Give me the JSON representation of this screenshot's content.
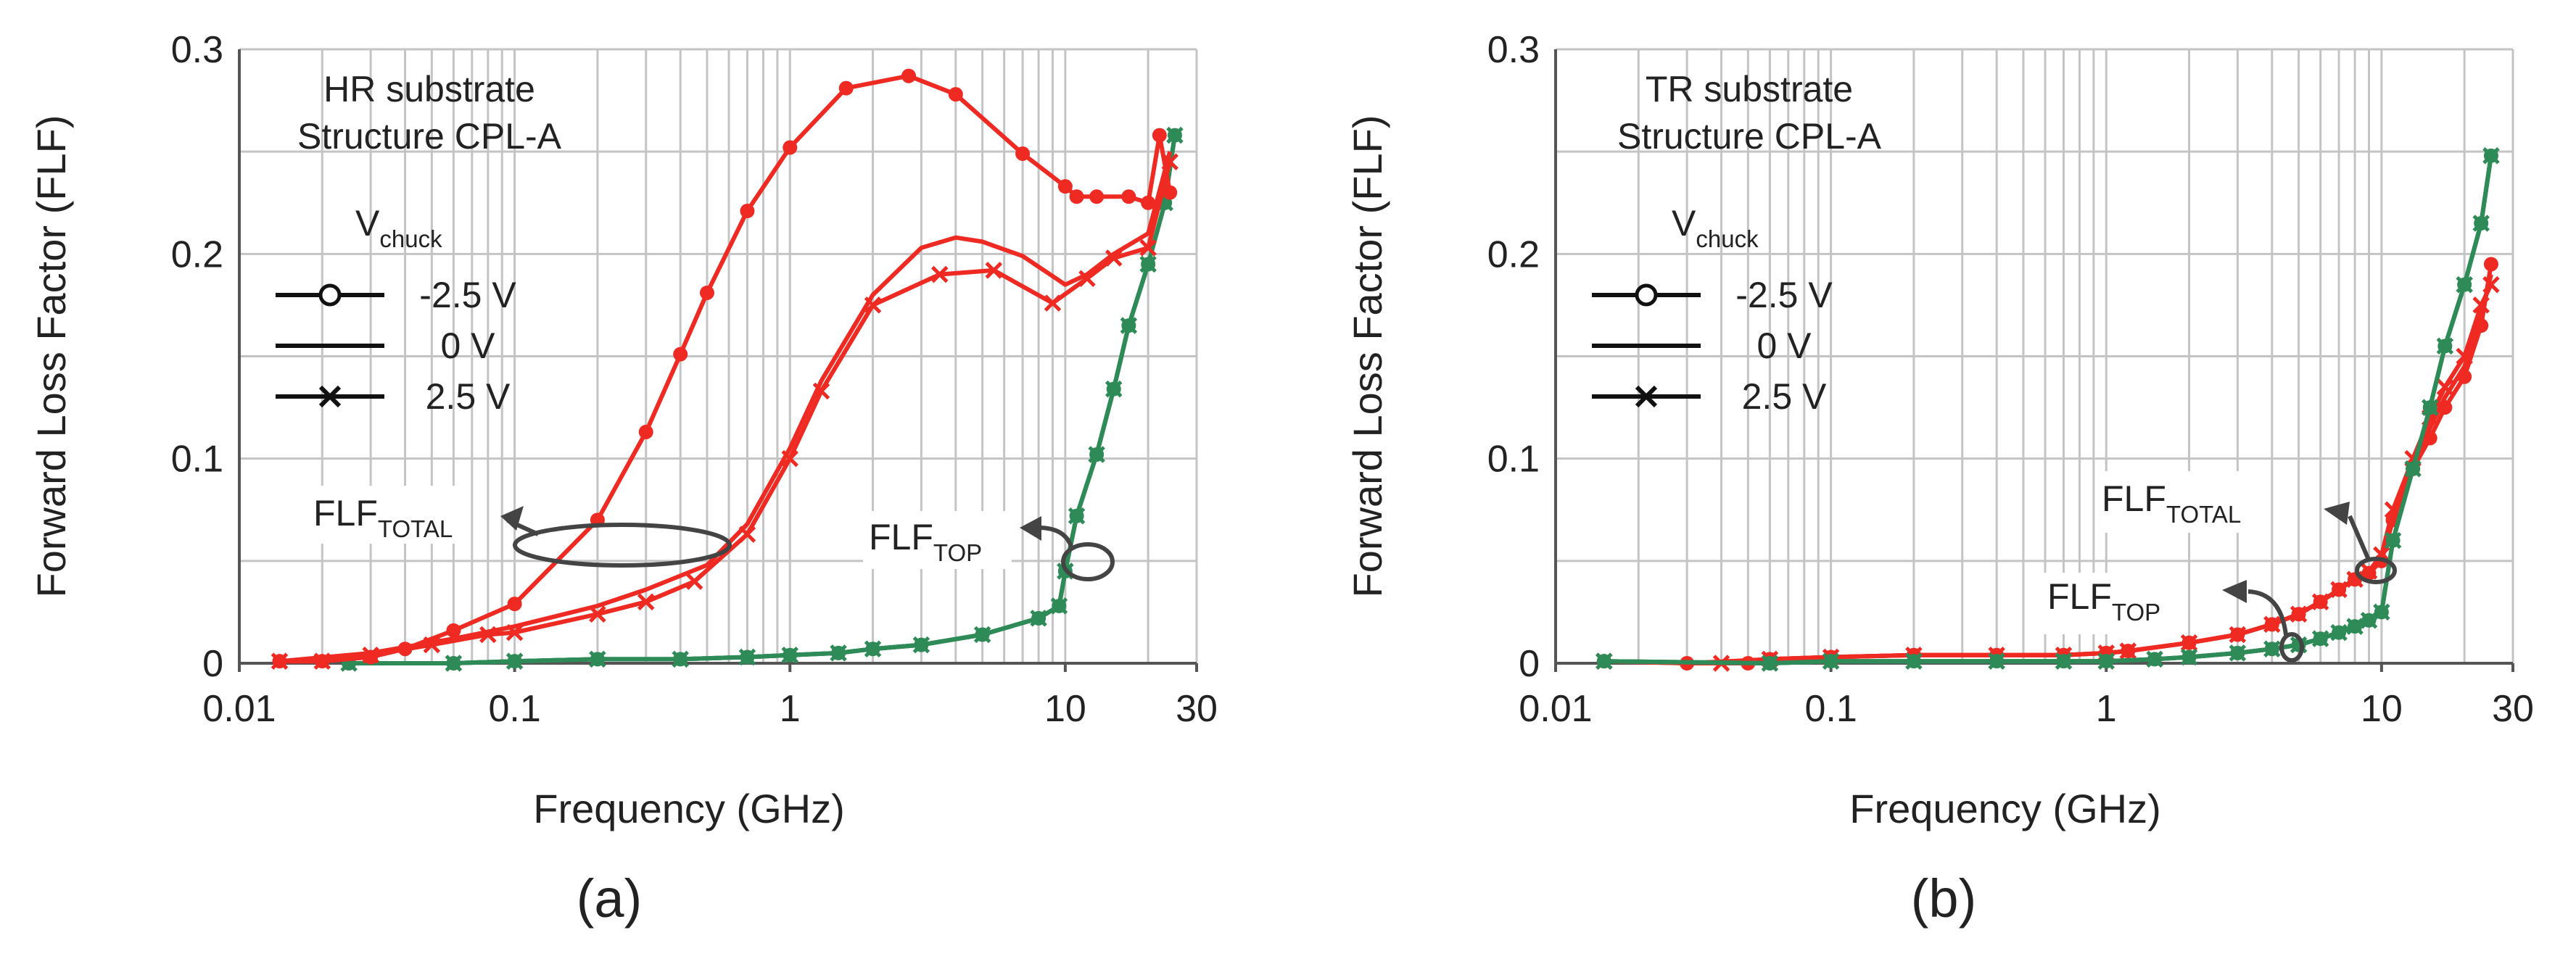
{
  "colors": {
    "red": "#ee2a22",
    "green": "#2e8b57",
    "grid": "#c4c4c4",
    "axis": "#555555",
    "marker_fill": "#ffffff"
  },
  "legend": {
    "title_main": "V",
    "title_sub": "chuck",
    "items": [
      {
        "marker": "circle",
        "label": "-2.5 V"
      },
      {
        "marker": "none",
        "label": "0 V"
      },
      {
        "marker": "cross",
        "label": "2.5 V"
      }
    ]
  },
  "chart_data": [
    {
      "panel": "a",
      "caption": "(a)",
      "type": "line",
      "xscale": "log",
      "xlim": [
        0.01,
        30
      ],
      "ylim": [
        0,
        0.3
      ],
      "xticks": [
        0.01,
        0.1,
        1,
        10,
        30
      ],
      "xtick_labels": [
        "0.01",
        "0.1",
        "1",
        "10",
        "30"
      ],
      "yticks": [
        0,
        0.1,
        0.2,
        0.3
      ],
      "ytick_labels": [
        "0",
        "0.1",
        "0.2",
        "0.3"
      ],
      "xlabel": "Frequency (GHz)",
      "ylabel": "Forward Loss Factor (FLF)",
      "annotation": {
        "line1": "HR substrate",
        "line2": "Structure CPL-A"
      },
      "labels": {
        "total_main": "FLF",
        "total_sub": "TOTAL",
        "top_main": "FLF",
        "top_sub": "TOP"
      },
      "series": [
        {
          "name": "FLF_TOTAL -2.5 V",
          "group": "total",
          "marker": "circle",
          "x": [
            0.014,
            0.02,
            0.03,
            0.04,
            0.06,
            0.1,
            0.2,
            0.3,
            0.4,
            0.5,
            0.7,
            1.0,
            1.6,
            2.7,
            4.0,
            7.0,
            10.0,
            11.0,
            13.0,
            17.0,
            20.0,
            22.0,
            24.0
          ],
          "y": [
            0.001,
            0.001,
            0.003,
            0.007,
            0.016,
            0.029,
            0.07,
            0.113,
            0.151,
            0.181,
            0.221,
            0.252,
            0.281,
            0.287,
            0.278,
            0.249,
            0.233,
            0.228,
            0.228,
            0.228,
            0.225,
            0.258,
            0.23
          ]
        },
        {
          "name": "FLF_TOTAL 0 V",
          "group": "total",
          "marker": "none",
          "x": [
            0.014,
            0.03,
            0.06,
            0.1,
            0.2,
            0.3,
            0.5,
            0.7,
            1.0,
            1.3,
            2.0,
            3.0,
            4.0,
            5.0,
            7.0,
            10.0,
            12.0,
            15.0,
            20.0,
            24.0
          ],
          "y": [
            0.001,
            0.005,
            0.012,
            0.018,
            0.028,
            0.036,
            0.048,
            0.068,
            0.105,
            0.138,
            0.18,
            0.203,
            0.208,
            0.206,
            0.199,
            0.185,
            0.19,
            0.2,
            0.21,
            0.25
          ]
        },
        {
          "name": "FLF_TOTAL 2.5 V",
          "group": "total",
          "marker": "cross",
          "x": [
            0.014,
            0.02,
            0.03,
            0.05,
            0.08,
            0.1,
            0.2,
            0.3,
            0.45,
            0.7,
            1.0,
            1.3,
            2.0,
            3.5,
            5.5,
            9.0,
            12.0,
            15.0,
            20.0,
            24.0
          ],
          "y": [
            0.001,
            0.001,
            0.004,
            0.009,
            0.014,
            0.015,
            0.024,
            0.03,
            0.04,
            0.063,
            0.1,
            0.133,
            0.175,
            0.19,
            0.192,
            0.176,
            0.188,
            0.198,
            0.203,
            0.245
          ]
        },
        {
          "name": "FLF_TOP -2.5 V",
          "group": "top",
          "marker": "circle",
          "x": [
            0.025,
            0.06,
            0.1,
            0.2,
            0.4,
            0.7,
            1.0,
            1.5,
            2.0,
            3.0,
            5.0,
            8.0,
            9.5,
            10.0,
            11.0,
            13.0,
            15.0,
            17.0,
            20.0,
            23.0,
            25.0
          ],
          "y": [
            0.0,
            0.0,
            0.001,
            0.002,
            0.002,
            0.003,
            0.004,
            0.005,
            0.007,
            0.009,
            0.014,
            0.022,
            0.028,
            0.045,
            0.072,
            0.102,
            0.134,
            0.165,
            0.195,
            0.225,
            0.258
          ]
        },
        {
          "name": "FLF_TOP 0 V",
          "group": "top",
          "marker": "none",
          "x": [
            0.025,
            0.06,
            0.1,
            0.2,
            0.4,
            0.7,
            1.0,
            1.5,
            2.0,
            3.0,
            5.0,
            8.0,
            9.5,
            10.0,
            11.0,
            13.0,
            15.0,
            17.0,
            20.0,
            23.0,
            25.0
          ],
          "y": [
            0.0,
            0.0,
            0.001,
            0.002,
            0.002,
            0.003,
            0.004,
            0.005,
            0.007,
            0.009,
            0.014,
            0.022,
            0.028,
            0.045,
            0.072,
            0.102,
            0.134,
            0.165,
            0.195,
            0.225,
            0.258
          ]
        },
        {
          "name": "FLF_TOP 2.5 V",
          "group": "top",
          "marker": "cross",
          "x": [
            0.025,
            0.06,
            0.1,
            0.2,
            0.4,
            0.7,
            1.0,
            1.5,
            2.0,
            3.0,
            5.0,
            8.0,
            9.5,
            10.0,
            11.0,
            13.0,
            15.0,
            17.0,
            20.0,
            23.0,
            25.0
          ],
          "y": [
            0.0,
            0.0,
            0.001,
            0.002,
            0.002,
            0.003,
            0.004,
            0.005,
            0.007,
            0.009,
            0.014,
            0.022,
            0.028,
            0.045,
            0.072,
            0.102,
            0.134,
            0.165,
            0.195,
            0.225,
            0.258
          ]
        }
      ]
    },
    {
      "panel": "b",
      "caption": "(b)",
      "type": "line",
      "xscale": "log",
      "xlim": [
        0.01,
        30
      ],
      "ylim": [
        0,
        0.3
      ],
      "xticks": [
        0.01,
        0.1,
        1,
        10,
        30
      ],
      "xtick_labels": [
        "0.01",
        "0.1",
        "1",
        "10",
        "30"
      ],
      "yticks": [
        0,
        0.1,
        0.2,
        0.3
      ],
      "ytick_labels": [
        "0",
        "0.1",
        "0.2",
        "0.3"
      ],
      "xlabel": "Frequency (GHz)",
      "ylabel": "Forward Loss Factor (FLF)",
      "annotation": {
        "line1": "TR substrate",
        "line2": "Structure CPL-A"
      },
      "labels": {
        "total_main": "FLF",
        "total_sub": "TOTAL",
        "top_main": "FLF",
        "top_sub": "TOP"
      },
      "series": [
        {
          "name": "FLF_TOTAL -2.5 V",
          "group": "total",
          "marker": "circle",
          "x": [
            0.015,
            0.03,
            0.05,
            0.06,
            0.1,
            0.2,
            0.4,
            0.7,
            1.0,
            1.2,
            2.0,
            3.0,
            4.0,
            5.0,
            6.0,
            7.0,
            8.0,
            9.0,
            10.0,
            11.0,
            13.0,
            15.0,
            17.0,
            20.0,
            23.0,
            25.0
          ],
          "y": [
            0.001,
            0.0,
            0.0,
            0.002,
            0.003,
            0.004,
            0.004,
            0.004,
            0.005,
            0.006,
            0.01,
            0.014,
            0.019,
            0.024,
            0.03,
            0.036,
            0.041,
            0.044,
            0.05,
            0.07,
            0.095,
            0.11,
            0.125,
            0.14,
            0.165,
            0.195
          ]
        },
        {
          "name": "FLF_TOTAL 0 V",
          "group": "total",
          "marker": "none",
          "x": [
            0.015,
            0.03,
            0.06,
            0.1,
            0.2,
            0.4,
            0.7,
            1.0,
            1.2,
            2.0,
            3.0,
            4.0,
            5.0,
            6.0,
            7.0,
            8.0,
            9.0,
            10.0,
            11.0,
            13.0,
            15.0,
            17.0,
            20.0,
            23.0,
            25.0
          ],
          "y": [
            0.001,
            0.0,
            0.002,
            0.003,
            0.004,
            0.004,
            0.004,
            0.005,
            0.006,
            0.01,
            0.014,
            0.019,
            0.024,
            0.03,
            0.036,
            0.041,
            0.045,
            0.052,
            0.072,
            0.097,
            0.115,
            0.13,
            0.145,
            0.17,
            0.19
          ]
        },
        {
          "name": "FLF_TOTAL 2.5 V",
          "group": "total",
          "marker": "cross",
          "x": [
            0.015,
            0.04,
            0.06,
            0.1,
            0.2,
            0.4,
            0.7,
            1.0,
            1.2,
            2.0,
            3.0,
            4.0,
            5.0,
            6.0,
            7.0,
            8.0,
            9.0,
            10.0,
            11.0,
            13.0,
            15.0,
            17.0,
            20.0,
            23.0,
            25.0
          ],
          "y": [
            0.001,
            0.0,
            0.002,
            0.003,
            0.004,
            0.004,
            0.004,
            0.005,
            0.006,
            0.01,
            0.014,
            0.019,
            0.024,
            0.03,
            0.036,
            0.041,
            0.045,
            0.053,
            0.075,
            0.1,
            0.12,
            0.135,
            0.15,
            0.175,
            0.185
          ]
        },
        {
          "name": "FLF_TOP -2.5 V",
          "group": "top",
          "marker": "circle",
          "x": [
            0.015,
            0.06,
            0.1,
            0.2,
            0.4,
            0.7,
            1.0,
            1.5,
            2.0,
            3.0,
            4.0,
            5.0,
            6.0,
            7.0,
            8.0,
            9.0,
            10.0,
            11.0,
            13.0,
            15.0,
            17.0,
            20.0,
            23.0,
            25.0
          ],
          "y": [
            0.001,
            0.0,
            0.001,
            0.001,
            0.001,
            0.001,
            0.001,
            0.002,
            0.003,
            0.005,
            0.007,
            0.009,
            0.012,
            0.015,
            0.018,
            0.021,
            0.025,
            0.06,
            0.095,
            0.125,
            0.155,
            0.185,
            0.215,
            0.248
          ]
        },
        {
          "name": "FLF_TOP 0 V",
          "group": "top",
          "marker": "none",
          "x": [
            0.015,
            0.06,
            0.1,
            0.2,
            0.4,
            0.7,
            1.0,
            1.5,
            2.0,
            3.0,
            4.0,
            5.0,
            6.0,
            7.0,
            8.0,
            9.0,
            10.0,
            11.0,
            13.0,
            15.0,
            17.0,
            20.0,
            23.0,
            25.0
          ],
          "y": [
            0.001,
            0.0,
            0.001,
            0.001,
            0.001,
            0.001,
            0.001,
            0.002,
            0.003,
            0.005,
            0.007,
            0.009,
            0.012,
            0.015,
            0.018,
            0.021,
            0.025,
            0.06,
            0.095,
            0.125,
            0.155,
            0.185,
            0.215,
            0.248
          ]
        },
        {
          "name": "FLF_TOP 2.5 V",
          "group": "top",
          "marker": "cross",
          "x": [
            0.015,
            0.06,
            0.1,
            0.2,
            0.4,
            0.7,
            1.0,
            1.5,
            2.0,
            3.0,
            4.0,
            5.0,
            6.0,
            7.0,
            8.0,
            9.0,
            10.0,
            11.0,
            13.0,
            15.0,
            17.0,
            20.0,
            23.0,
            25.0
          ],
          "y": [
            0.001,
            0.0,
            0.001,
            0.001,
            0.001,
            0.001,
            0.001,
            0.002,
            0.003,
            0.005,
            0.007,
            0.009,
            0.012,
            0.015,
            0.018,
            0.021,
            0.025,
            0.06,
            0.095,
            0.125,
            0.155,
            0.185,
            0.215,
            0.248
          ]
        }
      ]
    }
  ]
}
